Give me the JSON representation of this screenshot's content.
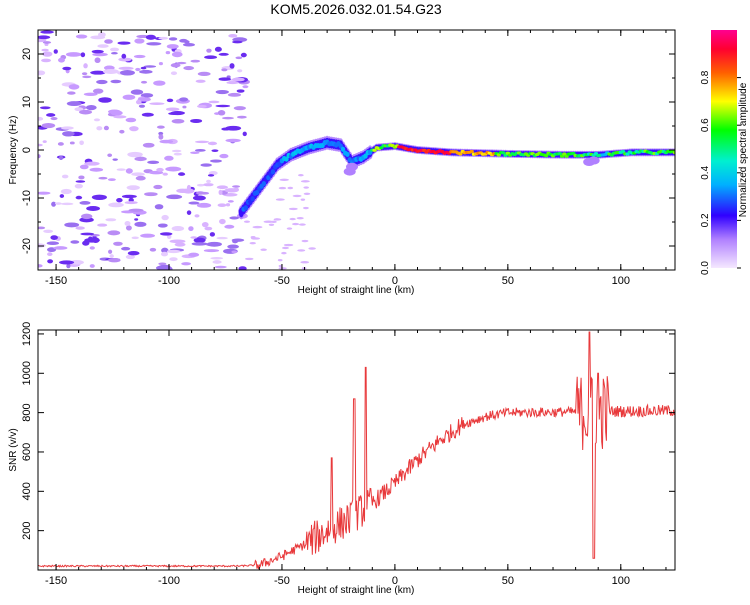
{
  "title": "KOM5.2026.032.01.54.G23",
  "chart_data": [
    {
      "type": "heatmap",
      "name": "spectrogram",
      "xlabel": "Height of straight line (km)",
      "ylabel": "Frequency (Hz)",
      "xlim": [
        -158,
        124
      ],
      "ylim": [
        -25,
        25
      ],
      "xticks": [
        -150,
        -100,
        -50,
        0,
        50,
        100
      ],
      "yticks": [
        -20,
        -10,
        0,
        10,
        20
      ],
      "colorbar": {
        "label": "Normalized spectral amplitude",
        "range": [
          0,
          1
        ],
        "ticks": [
          "0.0",
          "0.2",
          "0.4",
          "0.6",
          "0.8"
        ]
      },
      "track": [
        {
          "x": -68,
          "y": -13
        },
        {
          "x": -60,
          "y": -8
        },
        {
          "x": -52,
          "y": -3
        },
        {
          "x": -46,
          "y": -1
        },
        {
          "x": -38,
          "y": 0.5
        },
        {
          "x": -30,
          "y": 1.5
        },
        {
          "x": -24,
          "y": 1
        },
        {
          "x": -19,
          "y": -2.5
        },
        {
          "x": -14,
          "y": -1.5
        },
        {
          "x": -8,
          "y": 0.5
        },
        {
          "x": 0,
          "y": 0.8
        },
        {
          "x": 10,
          "y": 0
        },
        {
          "x": 25,
          "y": -0.5
        },
        {
          "x": 50,
          "y": -0.8
        },
        {
          "x": 75,
          "y": -1
        },
        {
          "x": 90,
          "y": -1
        },
        {
          "x": 105,
          "y": -0.5
        },
        {
          "x": 124,
          "y": -0.5
        }
      ]
    },
    {
      "type": "line",
      "name": "snr",
      "xlabel": "Height of straight line (km)",
      "ylabel": "SNR (v/v)",
      "xlim": [
        -158,
        124
      ],
      "ylim": [
        0,
        1220
      ],
      "xticks": [
        -150,
        -100,
        -50,
        0,
        50,
        100
      ],
      "yticks": [
        200,
        400,
        600,
        800,
        1000,
        1200
      ],
      "color": "#e8393b",
      "trend": [
        {
          "x": -158,
          "y": 20
        },
        {
          "x": -70,
          "y": 20
        },
        {
          "x": -60,
          "y": 25
        },
        {
          "x": -50,
          "y": 70
        },
        {
          "x": -40,
          "y": 130
        },
        {
          "x": -30,
          "y": 200
        },
        {
          "x": -20,
          "y": 260
        },
        {
          "x": -10,
          "y": 340
        },
        {
          "x": 0,
          "y": 440
        },
        {
          "x": 10,
          "y": 560
        },
        {
          "x": 20,
          "y": 660
        },
        {
          "x": 30,
          "y": 740
        },
        {
          "x": 40,
          "y": 780
        },
        {
          "x": 50,
          "y": 800
        },
        {
          "x": 124,
          "y": 810
        }
      ],
      "spikes": [
        {
          "x": -13,
          "y": 1030
        },
        {
          "x": -18,
          "y": 870
        },
        {
          "x": -28,
          "y": 570
        },
        {
          "x": 86,
          "y": 1210
        },
        {
          "x": 88,
          "y": 60
        },
        {
          "x": 90,
          "y": 1000
        }
      ]
    }
  ]
}
